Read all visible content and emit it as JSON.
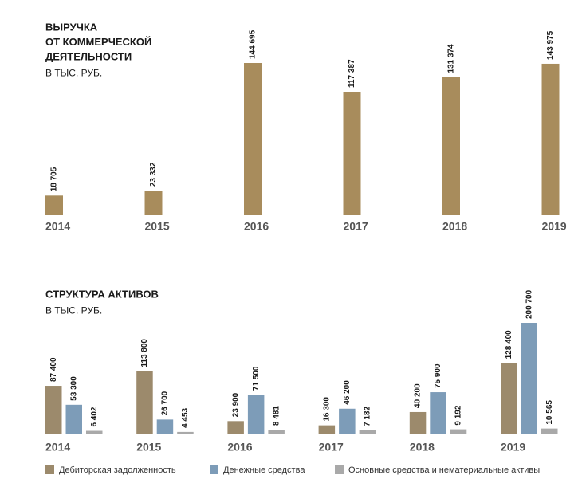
{
  "chart_data": [
    {
      "type": "bar",
      "title": [
        "ВЫРУЧКА",
        "ОТ КОММЕРЧЕСКОЙ",
        "ДЕЯТЕЛЬНОСТИ"
      ],
      "subtitle": "В ТЫС. РУБ.",
      "categories": [
        "2014",
        "2015",
        "2016",
        "2017",
        "2018",
        "2019"
      ],
      "values": [
        18705,
        23332,
        144695,
        117387,
        131374,
        143975
      ],
      "value_labels": [
        "18 705",
        "23 332",
        "144 695",
        "117 387",
        "131 374",
        "143 975"
      ],
      "color": "#a88c5c"
    },
    {
      "type": "grouped_bar",
      "title": [
        "СТРУКТУРА АКТИВОВ"
      ],
      "subtitle": "В ТЫС. РУБ.",
      "categories": [
        "2014",
        "2015",
        "2016",
        "2017",
        "2018",
        "2019"
      ],
      "series": [
        {
          "name": "Дебиторская задолженность",
          "color": "#9c8a6c",
          "values": [
            87400,
            113800,
            23900,
            16300,
            40200,
            128400
          ],
          "value_labels": [
            "87 400",
            "113 800",
            "23 900",
            "16 300",
            "40 200",
            "128 400"
          ]
        },
        {
          "name": "Денежные средства",
          "color": "#7d9cb8",
          "values": [
            53300,
            26700,
            71500,
            46200,
            75900,
            200700
          ],
          "value_labels": [
            "53 300",
            "26 700",
            "71 500",
            "46 200",
            "75 900",
            "200 700"
          ]
        },
        {
          "name": "Основные средства и нематериальные активы",
          "color": "#a9a9a9",
          "values": [
            6402,
            4453,
            8481,
            7182,
            9192,
            10565
          ],
          "value_labels": [
            "6 402",
            "4 453",
            "8 481",
            "7 182",
            "9 192",
            "10 565"
          ]
        }
      ]
    }
  ]
}
